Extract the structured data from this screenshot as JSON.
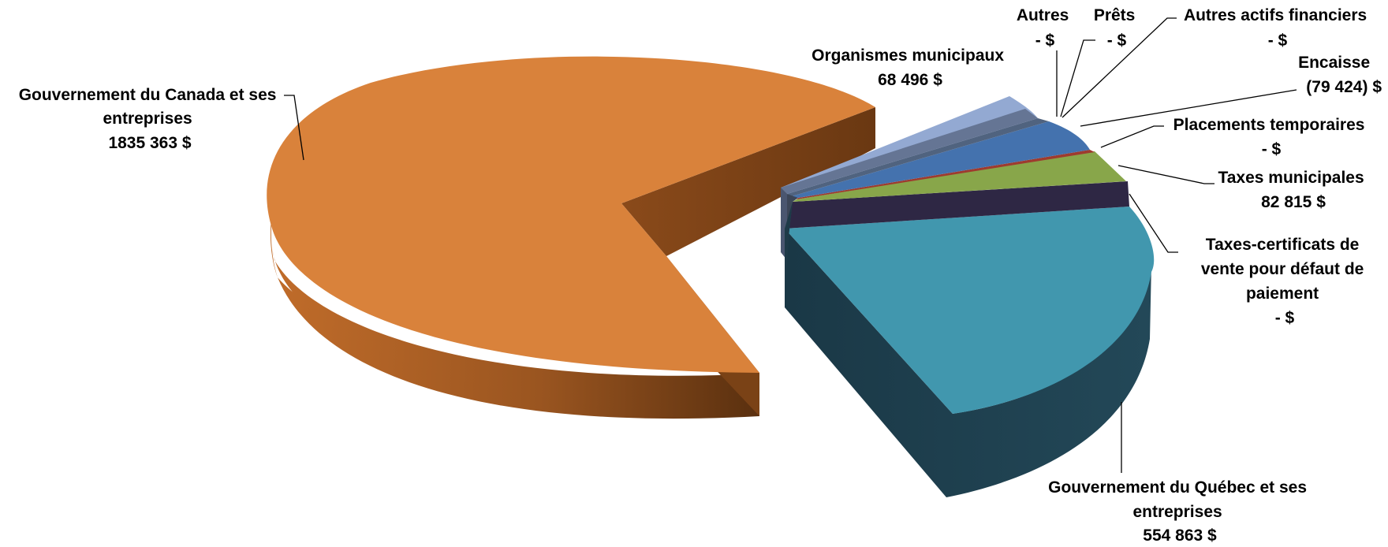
{
  "chart_data": {
    "type": "pie",
    "title": "",
    "legend": "none",
    "currency": "$",
    "slices": [
      {
        "key": "canada",
        "name": "Gouvernement du Canada et ses entreprises",
        "label_lines": [
          "Gouvernement du Canada et ses",
          "entreprises"
        ],
        "value_label": "1835 363  $",
        "value": 1835363,
        "color": "#D9823B"
      },
      {
        "key": "quebec",
        "name": "Gouvernement du Québec et ses entreprises",
        "label_lines": [
          "Gouvernement du Québec et ses",
          "entreprises"
        ],
        "value_label": "554 863  $",
        "value": 554863,
        "color": "#4197AE"
      },
      {
        "key": "certif",
        "name": "Taxes-certificats de vente pour défaut de paiement",
        "label_lines": [
          "Taxes-certificats de",
          "vente pour défaut de",
          "paiement"
        ],
        "value_label": "-    $",
        "value": 0,
        "color": "#2E2744"
      },
      {
        "key": "taxes",
        "name": "Taxes municipales",
        "label_lines": [
          "Taxes municipales"
        ],
        "value_label": "82 815  $",
        "value": 82815,
        "color": "#88A64A"
      },
      {
        "key": "placements",
        "name": "Placements temporaires",
        "label_lines": [
          "Placements temporaires"
        ],
        "value_label": "-    $",
        "value": 0,
        "color": "#9E3B2F"
      },
      {
        "key": "encaisse",
        "name": "Encaisse",
        "label_lines": [
          "Encaisse"
        ],
        "value_label": "(79 424) $",
        "value": -79424,
        "color": "#4472AE"
      },
      {
        "key": "aaf",
        "name": "Autres actifs financiers",
        "label_lines": [
          "Autres actifs financiers"
        ],
        "value_label": "-    $",
        "value": 0,
        "color": "#50637F"
      },
      {
        "key": "prets",
        "name": "Prêts",
        "label_lines": [
          "Prêts"
        ],
        "value_label": "-    $",
        "value": 0,
        "color": "#6D86AB"
      },
      {
        "key": "autres",
        "name": "Autres",
        "label_lines": [
          "Autres"
        ],
        "value_label": "-    $",
        "value": 0,
        "color": "#8E7AA8"
      },
      {
        "key": "organismes",
        "name": "Organismes municipaux",
        "label_lines": [
          "Organismes municipaux"
        ],
        "value_label": "68 496  $",
        "value": 68496,
        "color": "#93A9D2"
      }
    ]
  },
  "colors": {
    "canada_top": "#D9823B",
    "canada_side_dark": "#5E3310",
    "canada_side_light": "#B56628",
    "quebec_top": "#4197AE",
    "quebec_side": "#1C3C4A",
    "certif_top": "#2E2744",
    "taxes_top": "#88A64A",
    "placements_top": "#9E3B2F",
    "encaisse_top": "#4472AE",
    "organismes_top": "#93A9D2",
    "small_side": "#3E4A5E"
  }
}
